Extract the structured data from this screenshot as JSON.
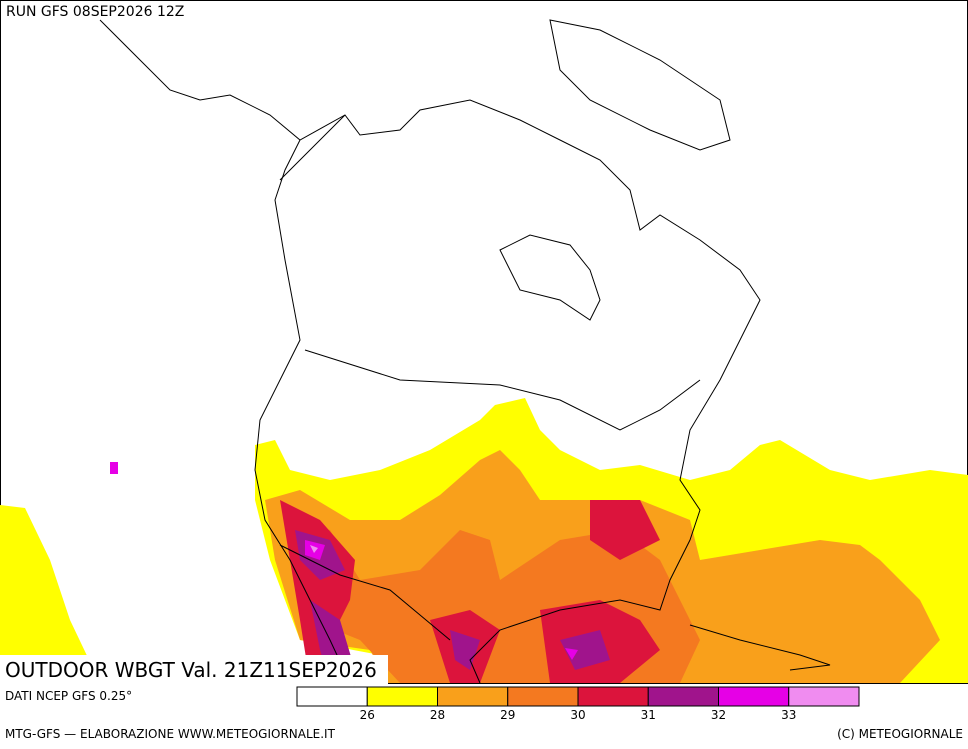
{
  "header": {
    "run": "RUN GFS 08SEP2026 12Z"
  },
  "map": {
    "title": "OUTDOOR WBGT Val. 21Z11SEP2026"
  },
  "legend": {
    "source": "DATI NCEP GFS 0.25°",
    "colors": [
      "#ffffff",
      "#ffff00",
      "#f9a01b",
      "#f47920",
      "#dc143c",
      "#a0148c",
      "#e600e6",
      "#f08cf0"
    ],
    "ticks": [
      26,
      28,
      29,
      30,
      31,
      32,
      33
    ]
  },
  "footer": {
    "left": "MTG-GFS — ELABORAZIONE WWW.METEOGIORNALE.IT",
    "right": "(C) METEOGIORNALE"
  }
}
